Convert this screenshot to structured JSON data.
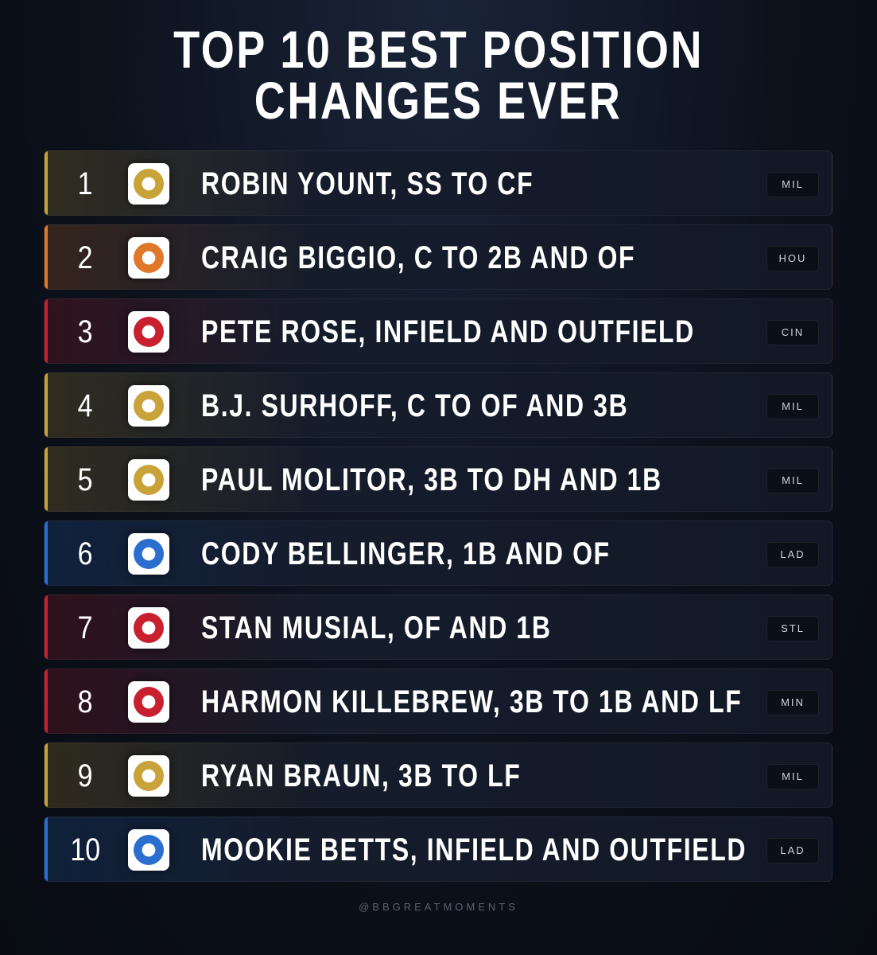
{
  "title": [
    "TOP 10 BEST POSITION",
    "CHANGES EVER"
  ],
  "items": [
    {
      "rank": "1",
      "name": "ROBIN YOUNT, SS TO CF",
      "team": "MIL",
      "accent": "#c9a23a"
    },
    {
      "rank": "2",
      "name": "CRAIG BIGGIO, C TO 2B AND OF",
      "team": "HOU",
      "accent": "#e0782a"
    },
    {
      "rank": "3",
      "name": "PETE ROSE, INFIELD AND OUTFIELD",
      "team": "CIN",
      "accent": "#c8202f"
    },
    {
      "rank": "4",
      "name": "B.J. SURHOFF, C TO OF AND 3B",
      "team": "MIL",
      "accent": "#c9a23a"
    },
    {
      "rank": "5",
      "name": "PAUL MOLITOR, 3B TO DH AND 1B",
      "team": "MIL",
      "accent": "#c9a23a"
    },
    {
      "rank": "6",
      "name": "CODY BELLINGER, 1B AND OF",
      "team": "LAD",
      "accent": "#2a6fd0"
    },
    {
      "rank": "7",
      "name": "STAN MUSIAL, OF AND 1B",
      "team": "STL",
      "accent": "#c8202f"
    },
    {
      "rank": "8",
      "name": "HARMON KILLEBREW, 3B TO 1B AND LF",
      "team": "MIN",
      "accent": "#c8202f"
    },
    {
      "rank": "9",
      "name": "RYAN BRAUN, 3B TO LF",
      "team": "MIL",
      "accent": "#c9a23a"
    },
    {
      "rank": "10",
      "name": "MOOKIE BETTS, INFIELD AND OUTFIELD",
      "team": "LAD",
      "accent": "#2a6fd0"
    }
  ],
  "footer": "@BBGREATMOMENTS"
}
